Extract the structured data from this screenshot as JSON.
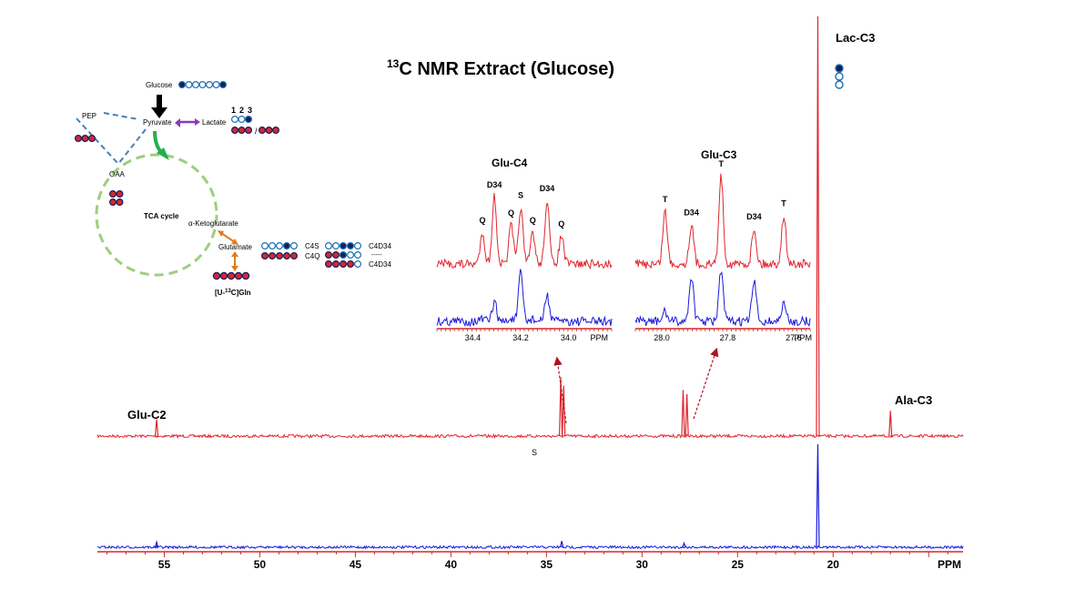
{
  "title": {
    "sup": "13",
    "rest": "C NMR Extract (Glucose)"
  },
  "peak_labels": {
    "lac_c3": "Lac-C3",
    "ala_c3": "Ala-C3",
    "glu_c2": "Glu-C2",
    "s_marker": "S"
  },
  "pathway": {
    "glucose": "Glucose",
    "pep": "PEP",
    "pyruvate": "Pyruvate",
    "lactate": "Lactate",
    "oaa": "OAA",
    "tca": "TCA cycle",
    "akg": "α-Ketoglutarate",
    "glutamate": "Glutamate",
    "gln_pre": "[U-",
    "gln_sup": "13",
    "gln_post": "C]Gln",
    "carbon_numbers": [
      "1",
      "2",
      "3"
    ],
    "c4s": "C4S",
    "c4q": "C4Q",
    "c4d34_a": "C4D34",
    "c4d34_b": "C4D34",
    "dashes": "-----"
  },
  "colors": {
    "red_trace": "#e0262e",
    "blue_trace": "#1a1adb",
    "filled_navy": "#13205c",
    "open_blue": "#1f6fb0",
    "red_fill": "#d8262e",
    "pathway_dash": "#4a7fb5",
    "tca_green": "#9ccf7e",
    "green_arrow": "#22b14c",
    "purple_arrow": "#8a3ab9",
    "orange_arrow": "#e07b24",
    "inset_arrow": "#b01020"
  },
  "insets": [
    {
      "title": "Glu-C4",
      "x_ticks": [
        "34.4",
        "34.2",
        "34.0"
      ],
      "unit": "PPM",
      "xlim": [
        34.55,
        33.82
      ],
      "peaks": [
        {
          "ppm": 34.36,
          "label": "Q"
        },
        {
          "ppm": 34.31,
          "label": "D34"
        },
        {
          "ppm": 34.24,
          "label": "Q"
        },
        {
          "ppm": 34.2,
          "label": "S"
        },
        {
          "ppm": 34.15,
          "label": "Q"
        },
        {
          "ppm": 34.09,
          "label": "D34"
        },
        {
          "ppm": 34.03,
          "label": "Q"
        }
      ]
    },
    {
      "title": "Glu-C3",
      "x_ticks": [
        "28.0",
        "27.8",
        "27.6"
      ],
      "unit": "PPM",
      "xlim": [
        28.08,
        27.55
      ],
      "peaks": [
        {
          "ppm": 27.99,
          "label": "T"
        },
        {
          "ppm": 27.91,
          "label": "D34"
        },
        {
          "ppm": 27.82,
          "label": "T"
        },
        {
          "ppm": 27.72,
          "label": "D34"
        },
        {
          "ppm": 27.63,
          "label": "T"
        }
      ]
    }
  ],
  "chart_data": {
    "type": "line",
    "title": "13C NMR Extract (Glucose)",
    "xlabel": "PPM",
    "x_ticks": [
      55,
      50,
      45,
      40,
      35,
      30,
      25,
      20
    ],
    "xlim": [
      58.5,
      13.2
    ],
    "reversed_x": true,
    "annotations": [
      {
        "label": "Lac-C3",
        "ppm": 20.8
      },
      {
        "label": "Ala-C3",
        "ppm": 17.0
      },
      {
        "label": "Glu-C2",
        "ppm": 55.4
      },
      {
        "label": "S",
        "ppm": 34.2
      }
    ],
    "series": [
      {
        "peaks": [
          {
            "ppm": 55.4,
            "h": 0.04
          },
          {
            "ppm": 34.25,
            "h": 0.14
          },
          {
            "ppm": 34.1,
            "h": 0.12
          },
          {
            "ppm": 27.85,
            "h": 0.11
          },
          {
            "ppm": 27.65,
            "h": 0.1
          },
          {
            "ppm": 20.8,
            "h": 1.0
          },
          {
            "ppm": 17.0,
            "h": 0.06
          }
        ]
      },
      {
        "peaks": [
          {
            "ppm": 55.4,
            "h": 0.05
          },
          {
            "ppm": 34.2,
            "h": 0.06
          },
          {
            "ppm": 27.8,
            "h": 0.04
          },
          {
            "ppm": 20.8,
            "h": 1.0
          }
        ]
      }
    ]
  }
}
